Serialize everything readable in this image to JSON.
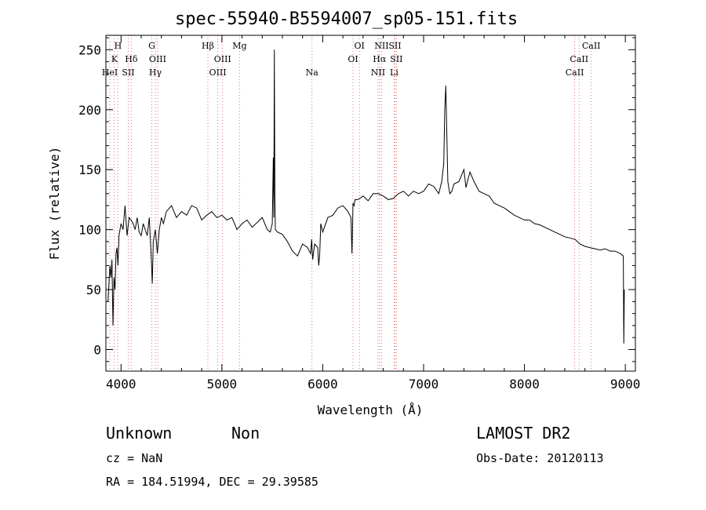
{
  "chart_data": {
    "type": "line",
    "title": "spec-55940-B5594007_sp05-151.fits",
    "xlabel": "Wavelength (Å)",
    "ylabel": "Flux (relative)",
    "xlim": [
      3850,
      9100
    ],
    "ylim": [
      -18,
      262
    ],
    "xticks": [
      "4000",
      "5000",
      "6000",
      "7000",
      "8000",
      "9000"
    ],
    "yticks": [
      "0",
      "50",
      "100",
      "150",
      "200",
      "250"
    ],
    "grid": false,
    "series": [
      {
        "x": [
          3870,
          3880,
          3890,
          3900,
          3910,
          3920,
          3930,
          3940,
          3950,
          3960,
          3970,
          3980,
          3990,
          4000,
          4020,
          4040,
          4060,
          4080,
          4100,
          4120,
          4140,
          4160,
          4180,
          4200,
          4220,
          4240,
          4260,
          4280,
          4300,
          4310,
          4320,
          4340,
          4360,
          4380,
          4400,
          4420,
          4450,
          4500,
          4550,
          4600,
          4650,
          4700,
          4750,
          4800,
          4850,
          4900,
          4950,
          5000,
          5050,
          5100,
          5150,
          5200,
          5250,
          5300,
          5350,
          5400,
          5450,
          5480,
          5500,
          5510,
          5515,
          5520,
          5525,
          5530,
          5550,
          5600,
          5650,
          5700,
          5750,
          5800,
          5850,
          5880,
          5890,
          5900,
          5920,
          5950,
          5960,
          5970,
          5980,
          6000,
          6050,
          6100,
          6150,
          6200,
          6250,
          6280,
          6290,
          6300,
          6310,
          6320,
          6350,
          6400,
          6450,
          6500,
          6550,
          6600,
          6650,
          6700,
          6750,
          6800,
          6850,
          6900,
          6950,
          7000,
          7050,
          7100,
          7150,
          7180,
          7200,
          7210,
          7220,
          7230,
          7240,
          7250,
          7260,
          7280,
          7300,
          7350,
          7400,
          7420,
          7440,
          7460,
          7500,
          7550,
          7600,
          7650,
          7700,
          7750,
          7800,
          7850,
          7900,
          7950,
          8000,
          8050,
          8100,
          8150,
          8200,
          8250,
          8300,
          8350,
          8400,
          8450,
          8500,
          8550,
          8600,
          8650,
          8700,
          8750,
          8800,
          8850,
          8900,
          8950,
          8980,
          8985,
          8990
        ],
        "y": [
          40,
          55,
          70,
          60,
          75,
          20,
          60,
          50,
          80,
          85,
          70,
          95,
          100,
          105,
          100,
          120,
          95,
          110,
          108,
          105,
          100,
          110,
          98,
          95,
          105,
          100,
          95,
          110,
          75,
          55,
          90,
          100,
          80,
          100,
          110,
          105,
          115,
          120,
          110,
          115,
          112,
          120,
          118,
          108,
          112,
          115,
          110,
          112,
          108,
          110,
          100,
          105,
          108,
          102,
          106,
          110,
          100,
          98,
          105,
          160,
          110,
          250,
          130,
          100,
          98,
          96,
          90,
          82,
          78,
          88,
          85,
          80,
          92,
          75,
          88,
          85,
          70,
          80,
          105,
          98,
          110,
          112,
          118,
          120,
          115,
          110,
          80,
          122,
          120,
          125,
          125,
          128,
          124,
          130,
          130,
          128,
          125,
          126,
          130,
          132,
          128,
          132,
          130,
          132,
          138,
          136,
          130,
          140,
          155,
          200,
          220,
          180,
          140,
          135,
          130,
          132,
          138,
          140,
          150,
          135,
          142,
          148,
          140,
          132,
          130,
          128,
          122,
          120,
          118,
          115,
          112,
          110,
          108,
          108,
          105,
          104,
          102,
          100,
          98,
          96,
          94,
          93,
          92,
          88,
          86,
          85,
          84,
          83,
          84,
          82,
          82,
          80,
          78,
          5,
          50
        ]
      }
    ],
    "line_labels": [
      {
        "text": "H",
        "x": 3970,
        "row": 0
      },
      {
        "text": "K",
        "x": 3935,
        "row": 1
      },
      {
        "text": "Hδ",
        "x": 4102,
        "row": 1
      },
      {
        "text": "HeI",
        "x": 3889,
        "row": 2
      },
      {
        "text": "SII",
        "x": 4072,
        "row": 2
      },
      {
        "text": "G",
        "x": 4305,
        "row": 0
      },
      {
        "text": "OIII",
        "x": 4363,
        "row": 1
      },
      {
        "text": "Hγ",
        "x": 4340,
        "row": 2
      },
      {
        "text": "Hβ",
        "x": 4861,
        "row": 0
      },
      {
        "text": "OIII",
        "x": 5007,
        "row": 1
      },
      {
        "text": "OIII",
        "x": 4959,
        "row": 2
      },
      {
        "text": "Mg",
        "x": 5175,
        "row": 0
      },
      {
        "text": "Na",
        "x": 5893,
        "row": 2
      },
      {
        "text": "OI",
        "x": 6364,
        "row": 0
      },
      {
        "text": "OI",
        "x": 6300,
        "row": 1
      },
      {
        "text": "NII",
        "x": 6583,
        "row": 0
      },
      {
        "text": "SII",
        "x": 6716,
        "row": 0
      },
      {
        "text": "Hα",
        "x": 6563,
        "row": 1
      },
      {
        "text": "SII",
        "x": 6731,
        "row": 1
      },
      {
        "text": "NII",
        "x": 6548,
        "row": 2
      },
      {
        "text": "Li",
        "x": 6708,
        "row": 2
      },
      {
        "text": "CaII",
        "x": 8662,
        "row": 0
      },
      {
        "text": "CaII",
        "x": 8542,
        "row": 1
      },
      {
        "text": "CaII",
        "x": 8498,
        "row": 2
      }
    ],
    "dotted_lines": [
      3889,
      3933,
      3968,
      4072,
      4102,
      4305,
      4340,
      4363,
      4861,
      4959,
      5007,
      5175,
      5893,
      6300,
      6364,
      6548,
      6563,
      6583,
      6708,
      6716,
      6731,
      8498,
      8542,
      8662
    ],
    "colors": {
      "spectrum": "#000000",
      "marker_lines": "#e07070",
      "axes": "#000000"
    }
  },
  "info": {
    "class": "Unknown",
    "subclass": "Non",
    "release": "LAMOST DR2",
    "cz": "cz = NaN",
    "obsdate": "Obs-Date: 20120113",
    "coords": "RA = 184.51994, DEC =  29.39585"
  }
}
